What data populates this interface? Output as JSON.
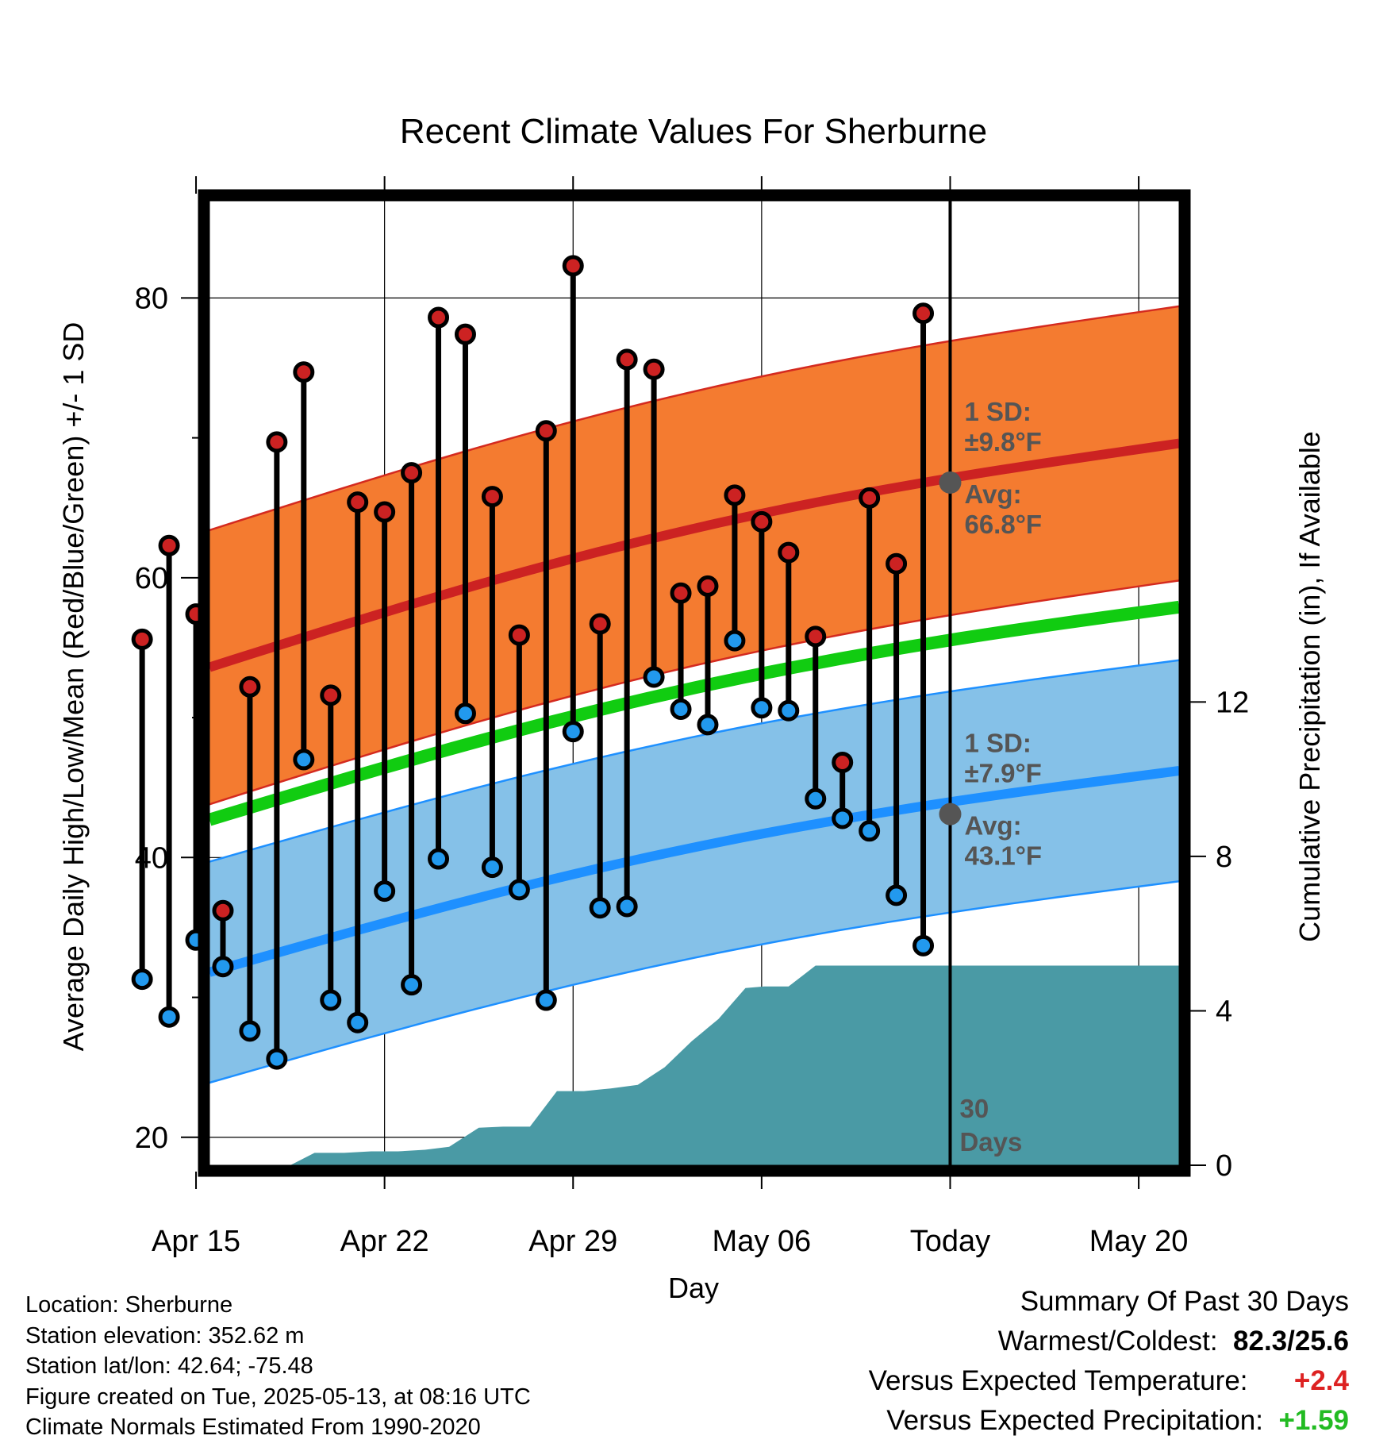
{
  "chart_data": {
    "type": "line",
    "title": "Recent Climate Values For Sherburne",
    "xlabel": "Day",
    "ylabel": "Average Daily High/Low/Mean (Red/Blue/Green) +/- 1 SD",
    "y2label": "Cumulative Precipitation (in), If Available",
    "ylim": [
      18,
      87
    ],
    "y2lim": [
      0,
      25
    ],
    "xlim": [
      -27.5,
      8.5
    ],
    "grid": true,
    "x_ticks": [
      {
        "x": -28,
        "label": "Apr 15"
      },
      {
        "x": -21,
        "label": "Apr 22"
      },
      {
        "x": -14,
        "label": "Apr 29"
      },
      {
        "x": -7,
        "label": "May 06"
      },
      {
        "x": 0,
        "label": "Today"
      },
      {
        "x": 7,
        "label": "May 20"
      }
    ],
    "y_ticks": [
      {
        "value": 20,
        "label": "20"
      },
      {
        "value": 40,
        "label": "40"
      },
      {
        "value": 60,
        "label": "60"
      },
      {
        "value": 80,
        "label": "80"
      }
    ],
    "y2_ticks": [
      {
        "value": 0,
        "label": "0"
      },
      {
        "value": 4,
        "label": "4"
      },
      {
        "value": 8,
        "label": "8"
      },
      {
        "value": 12,
        "label": "12"
      }
    ],
    "normals": {
      "x": [
        -27.5,
        8.5
      ],
      "high_avg": [
        53.6,
        69.6
      ],
      "high_sd": 9.8,
      "low_avg": [
        31.8,
        46.2
      ],
      "low_sd": 7.9,
      "mean": [
        42.7,
        57.9
      ]
    },
    "days": [
      -30,
      -29,
      -28,
      -27,
      -26,
      -25,
      -24,
      -23,
      -22,
      -21,
      -20,
      -19,
      -18,
      -17,
      -16,
      -15,
      -14,
      -13,
      -12,
      -11,
      -10,
      -9,
      -8,
      -7,
      -6,
      -5,
      -4,
      -3,
      -2,
      -1
    ],
    "series": [
      {
        "name": "High",
        "color": "#cc2222",
        "values": [
          55.6,
          62.3,
          57.4,
          36.2,
          52.2,
          69.7,
          74.7,
          51.6,
          65.4,
          64.7,
          67.5,
          78.6,
          77.4,
          65.8,
          55.9,
          70.5,
          82.3,
          56.7,
          75.6,
          74.9,
          58.9,
          59.4,
          65.9,
          64.0,
          61.8,
          55.8,
          46.8,
          65.7,
          61.0,
          78.9
        ]
      },
      {
        "name": "Low",
        "color": "#2299ee",
        "values": [
          31.3,
          28.6,
          34.1,
          32.2,
          27.6,
          25.6,
          47.0,
          29.8,
          28.2,
          37.6,
          30.9,
          39.9,
          50.3,
          39.3,
          37.7,
          29.8,
          49.0,
          36.4,
          36.5,
          52.9,
          50.6,
          49.5,
          55.5,
          50.7,
          50.5,
          44.2,
          42.8,
          41.9,
          37.3,
          33.7
        ]
      }
    ],
    "precip_cumulative": {
      "x": [
        -27.5,
        -24.5,
        -23.6,
        -22.5,
        -21.5,
        -20.5,
        -19.5,
        -18.6,
        -17.5,
        -16.6,
        -15.6,
        -14.6,
        -13.6,
        -12.6,
        -11.6,
        -10.6,
        -9.6,
        -8.6,
        -7.6,
        -6.9,
        -6.0,
        -5.0,
        -4.2,
        8.5
      ],
      "values": [
        0.0,
        0.0,
        0.32,
        0.32,
        0.36,
        0.36,
        0.4,
        0.48,
        0.97,
        1.0,
        1.0,
        1.92,
        1.92,
        1.99,
        2.08,
        2.54,
        3.21,
        3.79,
        4.59,
        4.63,
        4.63,
        5.17,
        5.17,
        5.17
      ],
      "color": "#4a9aa5"
    },
    "annotations": {
      "high_sd_label": "1 SD:",
      "high_sd_value": "±9.8°F",
      "high_avg_label": "Avg:",
      "high_avg_value": "66.8°F",
      "high_avg_point": 66.8,
      "low_sd_label": "1 SD:",
      "low_sd_value": "±7.9°F",
      "low_avg_label": "Avg:",
      "low_avg_value": "43.1°F",
      "low_avg_point": 43.1,
      "days_label_1": "30",
      "days_label_2": "Days"
    }
  },
  "footer": {
    "location": "Location: Sherburne",
    "elevation": "Station elevation: 352.62 m",
    "latlon": "Station lat/lon: 42.64; -75.48",
    "created": "Figure created on Tue, 2025-05-13, at 08:16 UTC",
    "normals": "Climate Normals Estimated From 1990-2020"
  },
  "summary": {
    "heading": "Summary Of Past 30 Days",
    "warm_cold_label": "Warmest/Coldest:",
    "warm_cold_value": "82.3/25.6",
    "temp_label": "Versus Expected Temperature:",
    "temp_value": "+2.4",
    "temp_color": "#dd2222",
    "precip_label": "Versus Expected Precipitation:",
    "precip_value": "+1.59",
    "precip_color": "#22bb22"
  }
}
